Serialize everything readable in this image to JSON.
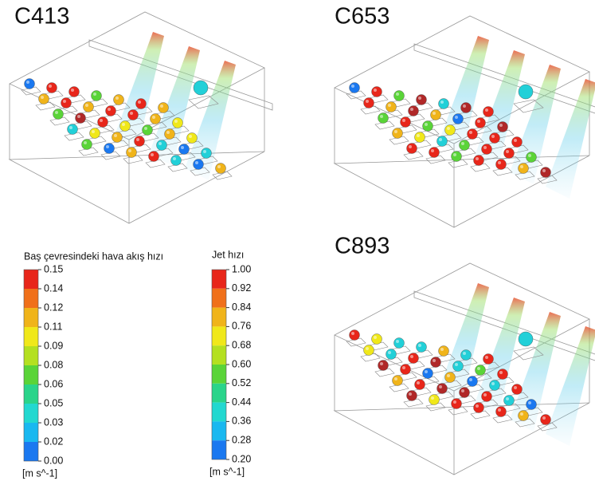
{
  "panels": [
    {
      "title": "C413"
    },
    {
      "title": "C653"
    },
    {
      "title": "C893"
    }
  ],
  "legends": [
    {
      "title": "Baş çevresindeki hava akış hızı",
      "ticks": [
        "0.15",
        "0.14",
        "0.12",
        "0.11",
        "0.09",
        "0.08",
        "0.06",
        "0.05",
        "0.03",
        "0.02",
        "0.00"
      ],
      "unit": "[m s^-1]"
    },
    {
      "title": "Jet hızı",
      "ticks": [
        "1.00",
        "0.92",
        "0.84",
        "0.76",
        "0.68",
        "0.60",
        "0.52",
        "0.44",
        "0.36",
        "0.28",
        "0.20"
      ],
      "unit": "[m s^-1]"
    }
  ]
}
